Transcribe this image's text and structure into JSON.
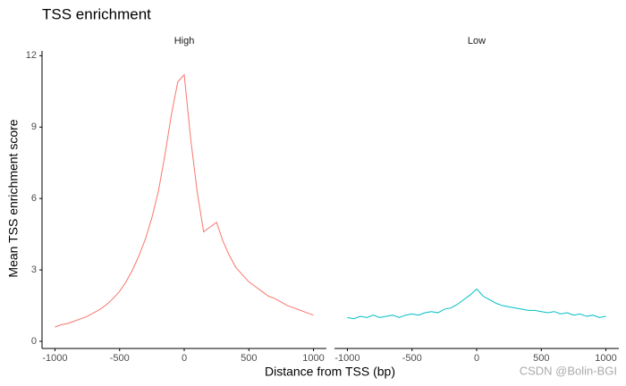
{
  "chart_data": {
    "type": "line",
    "title": "TSS enrichment",
    "x_label": "Distance from TSS (bp)",
    "y_label": "Mean TSS enrichment score",
    "facets": true,
    "x": [
      -1000,
      -950,
      -900,
      -850,
      -800,
      -750,
      -700,
      -650,
      -600,
      -550,
      -500,
      -450,
      -400,
      -350,
      -300,
      -250,
      -200,
      -150,
      -100,
      -50,
      0,
      50,
      100,
      150,
      200,
      250,
      300,
      350,
      400,
      450,
      500,
      550,
      600,
      650,
      700,
      750,
      800,
      850,
      900,
      950,
      1000
    ],
    "series": [
      {
        "name": "High",
        "color": "#f8766d",
        "values": [
          0.6,
          0.7,
          0.75,
          0.85,
          0.95,
          1.05,
          1.2,
          1.35,
          1.55,
          1.8,
          2.1,
          2.5,
          3.0,
          3.6,
          4.3,
          5.2,
          6.3,
          7.8,
          9.5,
          10.9,
          11.2,
          8.5,
          6.3,
          4.6,
          4.8,
          5.0,
          4.2,
          3.6,
          3.1,
          2.8,
          2.5,
          2.3,
          2.1,
          1.9,
          1.8,
          1.65,
          1.5,
          1.4,
          1.3,
          1.2,
          1.1
        ]
      },
      {
        "name": "Low",
        "color": "#00bfc4",
        "values": [
          1.0,
          0.95,
          1.05,
          1.0,
          1.1,
          1.0,
          1.05,
          1.1,
          1.0,
          1.1,
          1.15,
          1.1,
          1.2,
          1.25,
          1.2,
          1.35,
          1.4,
          1.55,
          1.75,
          1.95,
          2.2,
          1.9,
          1.75,
          1.6,
          1.5,
          1.45,
          1.4,
          1.35,
          1.3,
          1.3,
          1.25,
          1.2,
          1.25,
          1.15,
          1.2,
          1.1,
          1.15,
          1.05,
          1.1,
          1.0,
          1.05
        ]
      }
    ],
    "xlim": [
      -1100,
      1100
    ],
    "xticks": [
      -1000,
      -500,
      0,
      500,
      1000
    ],
    "ylim": [
      -0.3,
      12.2
    ],
    "yticks": [
      0,
      3,
      6,
      9,
      12
    ],
    "grid": false
  },
  "watermark": "CSDN @Bolin-BGI"
}
